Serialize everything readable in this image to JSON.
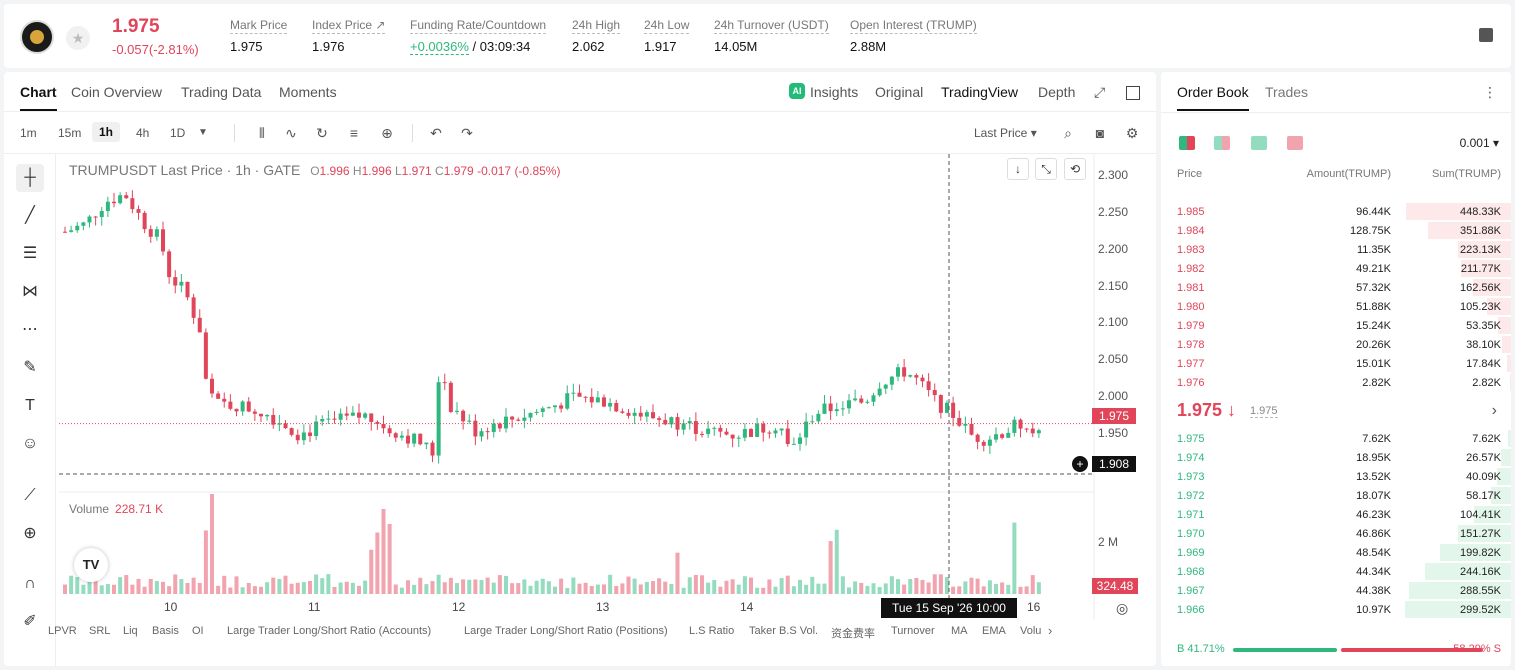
{
  "ticker": {
    "price": "1.975",
    "change": "-0.057(-2.81%)",
    "stats": [
      {
        "label": "Mark Price",
        "value": "1.975"
      },
      {
        "label": "Index Price ↗",
        "value": "1.976"
      },
      {
        "label": "Funding Rate/Countdown",
        "value_green": "+0.0036%",
        "value": " / 03:09:34"
      },
      {
        "label": "24h High",
        "value": "2.062"
      },
      {
        "label": "24h Low",
        "value": "1.917"
      },
      {
        "label": "24h Turnover (USDT)",
        "value": "14.05M"
      },
      {
        "label": "Open Interest (TRUMP)",
        "value": "2.88M"
      }
    ]
  },
  "chart_tabs": {
    "left": [
      "Chart",
      "Coin Overview",
      "Trading Data",
      "Moments"
    ],
    "right": [
      "Insights",
      "Original",
      "TradingView",
      "Depth"
    ]
  },
  "timeframes": [
    "1m",
    "15m",
    "1h",
    "4h",
    "1D"
  ],
  "toolbar": {
    "last_price": "Last Price ▾"
  },
  "legend": {
    "symbol": "TRUMPUSDT Last Price · 1h · GATE",
    "o": "1.996",
    "h": "1.996",
    "l": "1.971",
    "c": "1.979",
    "chg": "-0.017 (-0.85%)"
  },
  "volume": {
    "label": "Volume",
    "value": "228.71 K"
  },
  "axis": {
    "y_ticks": [
      "2.300",
      "2.250",
      "2.200",
      "2.150",
      "2.100",
      "2.050",
      "2.000",
      "1.950"
    ],
    "vol_tick": "2 M",
    "x_ticks": [
      "10",
      "11",
      "12",
      "13",
      "14",
      "16"
    ],
    "last_price_tag": "1.975",
    "cross_price_tag": "1.908",
    "vol_tag": "324.48 K",
    "cross_time": "Tue 15 Sep '26    10:00"
  },
  "indicators": [
    "LPVR",
    "SRL",
    "Liq",
    "Basis",
    "OI",
    "Large Trader Long/Short Ratio (Accounts)",
    "Large Trader Long/Short Ratio (Positions)",
    "L.S Ratio",
    "Taker B.S Vol.",
    "资金费率",
    "Turnover",
    "MA",
    "EMA",
    "Volu"
  ],
  "orderbook": {
    "tabs": [
      "Order Book",
      "Trades"
    ],
    "precision": "0.001 ▾",
    "headers": [
      "Price",
      "Amount(TRUMP)",
      "Sum(TRUMP)"
    ],
    "asks": [
      {
        "p": "1.985",
        "a": "96.44K",
        "s": "448.33K",
        "depth": 0.99
      },
      {
        "p": "1.984",
        "a": "128.75K",
        "s": "351.88K",
        "depth": 0.78
      },
      {
        "p": "1.983",
        "a": "11.35K",
        "s": "223.13K",
        "depth": 0.5
      },
      {
        "p": "1.982",
        "a": "49.21K",
        "s": "211.77K",
        "depth": 0.47
      },
      {
        "p": "1.981",
        "a": "57.32K",
        "s": "162.56K",
        "depth": 0.36
      },
      {
        "p": "1.980",
        "a": "51.88K",
        "s": "105.23K",
        "depth": 0.23
      },
      {
        "p": "1.979",
        "a": "15.24K",
        "s": "53.35K",
        "depth": 0.12
      },
      {
        "p": "1.978",
        "a": "20.26K",
        "s": "38.10K",
        "depth": 0.085
      },
      {
        "p": "1.977",
        "a": "15.01K",
        "s": "17.84K",
        "depth": 0.04
      },
      {
        "p": "1.976",
        "a": "2.82K",
        "s": "2.82K",
        "depth": 0.006
      }
    ],
    "mid_price": "1.975 ↓",
    "mid_mark": "1.975",
    "bids": [
      {
        "p": "1.975",
        "a": "7.62K",
        "s": "7.62K",
        "depth": 0.025
      },
      {
        "p": "1.974",
        "a": "18.95K",
        "s": "26.57K",
        "depth": 0.09
      },
      {
        "p": "1.973",
        "a": "13.52K",
        "s": "40.09K",
        "depth": 0.13
      },
      {
        "p": "1.972",
        "a": "18.07K",
        "s": "58.17K",
        "depth": 0.19
      },
      {
        "p": "1.971",
        "a": "46.23K",
        "s": "104.41K",
        "depth": 0.35
      },
      {
        "p": "1.970",
        "a": "46.86K",
        "s": "151.27K",
        "depth": 0.5
      },
      {
        "p": "1.969",
        "a": "48.54K",
        "s": "199.82K",
        "depth": 0.67
      },
      {
        "p": "1.968",
        "a": "44.34K",
        "s": "244.16K",
        "depth": 0.81
      },
      {
        "p": "1.967",
        "a": "44.38K",
        "s": "288.55K",
        "depth": 0.96
      },
      {
        "p": "1.966",
        "a": "10.97K",
        "s": "299.52K",
        "depth": 1.0
      }
    ],
    "buy_ratio": "B 41.71%",
    "sell_ratio": "58.29% S",
    "buy_fraction": 0.4171
  },
  "colors": {
    "up": "#2fb77f",
    "down": "#e0455a",
    "up_vol": "#94dcc0",
    "down_vol": "#f1a3ae"
  }
}
